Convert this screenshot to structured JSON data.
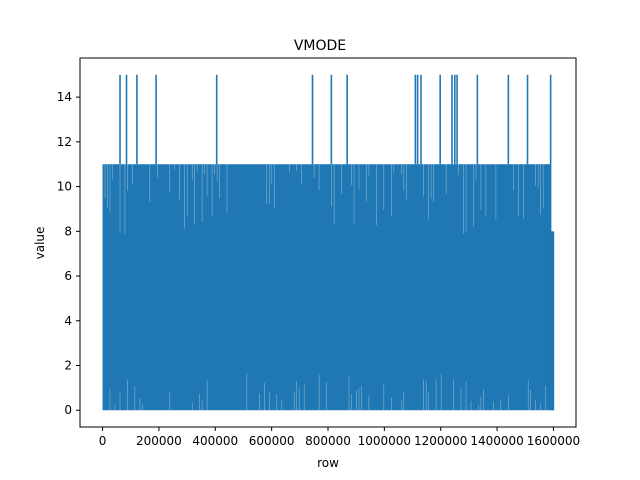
{
  "chart_data": {
    "type": "line",
    "title": "VMODE",
    "xlabel": "row",
    "ylabel": "value",
    "xlim": [
      -80000,
      1680000
    ],
    "ylim": [
      -0.75,
      15.75
    ],
    "xticks": [
      0,
      200000,
      400000,
      600000,
      800000,
      1000000,
      1200000,
      1400000,
      1600000
    ],
    "xtick_labels": [
      "0",
      "200000",
      "400000",
      "600000",
      "800000",
      "1000000",
      "1200000",
      "1400000",
      "1600000"
    ],
    "yticks": [
      0,
      2,
      4,
      6,
      8,
      10,
      12,
      14
    ],
    "ytick_labels": [
      "0",
      "2",
      "4",
      "6",
      "8",
      "10",
      "12",
      "14"
    ],
    "grid": false,
    "series": [
      {
        "color": "#1f77b4",
        "x_range": [
          0,
          1605000
        ],
        "band_min": 0,
        "band_max": 11,
        "spikes_to_15_at": [
          62000,
          85000,
          122000,
          190000,
          405000,
          745000,
          812000,
          868000,
          1110000,
          1118000,
          1130000,
          1198000,
          1240000,
          1250000,
          1258000,
          1330000,
          1440000,
          1508000,
          1590000
        ],
        "tail_values": [
          [
            1590000,
            11
          ],
          [
            1600000,
            8
          ],
          [
            1605000,
            0
          ]
        ]
      }
    ]
  }
}
